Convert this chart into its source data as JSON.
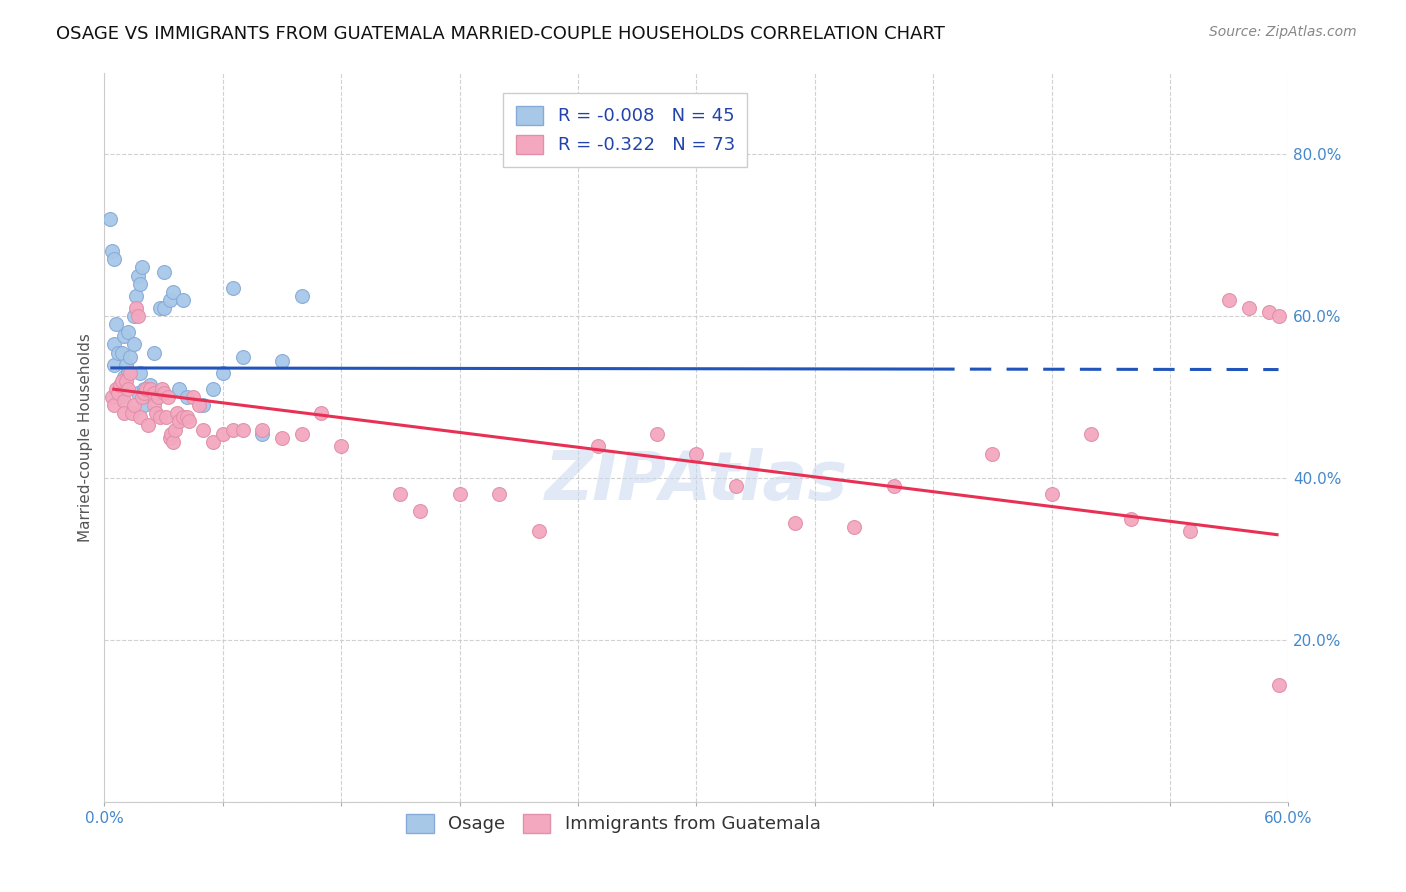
{
  "title": "OSAGE VS IMMIGRANTS FROM GUATEMALA MARRIED-COUPLE HOUSEHOLDS CORRELATION CHART",
  "source": "Source: ZipAtlas.com",
  "ylabel": "Married-couple Households",
  "watermark": "ZIPAtlas",
  "legend_blue_r": "-0.008",
  "legend_blue_n": "45",
  "legend_pink_r": "-0.322",
  "legend_pink_n": "73",
  "xmin": 0.0,
  "xmax": 0.6,
  "ymin": 0.0,
  "ymax": 0.9,
  "yticks": [
    0.0,
    0.2,
    0.4,
    0.6,
    0.8
  ],
  "xticks": [
    0.0,
    0.06,
    0.12,
    0.18,
    0.24,
    0.3,
    0.36,
    0.42,
    0.48,
    0.54,
    0.6
  ],
  "xlabels_show": [
    "0.0%",
    "",
    "",
    "",
    "",
    "",
    "",
    "",
    "",
    "",
    "60.0%"
  ],
  "ylabels": [
    "",
    "20.0%",
    "40.0%",
    "60.0%",
    "80.0%"
  ],
  "blue_color": "#a8c8e8",
  "pink_color": "#f4a8c0",
  "blue_line_color": "#2255bb",
  "pink_line_color": "#e83055",
  "background_color": "#ffffff",
  "grid_color": "#cccccc",
  "legend_label_blue": "Osage",
  "legend_label_pink": "Immigrants from Guatemala",
  "blue_points_x": [
    0.003,
    0.004,
    0.005,
    0.005,
    0.005,
    0.006,
    0.007,
    0.007,
    0.008,
    0.009,
    0.01,
    0.01,
    0.011,
    0.012,
    0.012,
    0.013,
    0.015,
    0.015,
    0.016,
    0.017,
    0.017,
    0.018,
    0.018,
    0.019,
    0.02,
    0.02,
    0.022,
    0.023,
    0.025,
    0.028,
    0.03,
    0.03,
    0.033,
    0.035,
    0.038,
    0.04,
    0.042,
    0.05,
    0.055,
    0.06,
    0.065,
    0.07,
    0.08,
    0.09,
    0.1
  ],
  "blue_points_y": [
    0.72,
    0.68,
    0.565,
    0.54,
    0.67,
    0.59,
    0.555,
    0.51,
    0.5,
    0.555,
    0.525,
    0.575,
    0.54,
    0.53,
    0.58,
    0.55,
    0.565,
    0.6,
    0.625,
    0.65,
    0.505,
    0.64,
    0.53,
    0.66,
    0.49,
    0.51,
    0.51,
    0.515,
    0.555,
    0.61,
    0.61,
    0.655,
    0.62,
    0.63,
    0.51,
    0.62,
    0.5,
    0.49,
    0.51,
    0.53,
    0.635,
    0.55,
    0.455,
    0.545,
    0.625
  ],
  "pink_points_x": [
    0.004,
    0.005,
    0.006,
    0.007,
    0.008,
    0.009,
    0.01,
    0.01,
    0.011,
    0.012,
    0.013,
    0.014,
    0.015,
    0.016,
    0.017,
    0.018,
    0.019,
    0.02,
    0.021,
    0.022,
    0.023,
    0.025,
    0.025,
    0.026,
    0.027,
    0.028,
    0.029,
    0.03,
    0.031,
    0.032,
    0.033,
    0.034,
    0.035,
    0.036,
    0.037,
    0.038,
    0.04,
    0.042,
    0.043,
    0.045,
    0.048,
    0.05,
    0.055,
    0.06,
    0.065,
    0.07,
    0.08,
    0.09,
    0.1,
    0.11,
    0.12,
    0.15,
    0.16,
    0.18,
    0.2,
    0.22,
    0.25,
    0.28,
    0.3,
    0.32,
    0.35,
    0.38,
    0.4,
    0.45,
    0.48,
    0.5,
    0.52,
    0.55,
    0.57,
    0.58,
    0.59,
    0.595,
    0.595
  ],
  "pink_points_y": [
    0.5,
    0.49,
    0.51,
    0.505,
    0.515,
    0.52,
    0.495,
    0.48,
    0.52,
    0.51,
    0.53,
    0.48,
    0.49,
    0.61,
    0.6,
    0.475,
    0.5,
    0.505,
    0.51,
    0.465,
    0.51,
    0.49,
    0.505,
    0.48,
    0.5,
    0.475,
    0.51,
    0.505,
    0.475,
    0.5,
    0.45,
    0.455,
    0.445,
    0.46,
    0.48,
    0.47,
    0.475,
    0.475,
    0.47,
    0.5,
    0.49,
    0.46,
    0.445,
    0.455,
    0.46,
    0.46,
    0.46,
    0.45,
    0.455,
    0.48,
    0.44,
    0.38,
    0.36,
    0.38,
    0.38,
    0.335,
    0.44,
    0.455,
    0.43,
    0.39,
    0.345,
    0.34,
    0.39,
    0.43,
    0.38,
    0.455,
    0.35,
    0.335,
    0.62,
    0.61,
    0.605,
    0.145,
    0.6
  ],
  "blue_trend_x": [
    0.003,
    0.595
  ],
  "blue_trend_y": [
    0.536,
    0.534
  ],
  "blue_trend_solid_end_x": 0.42,
  "pink_trend_x": [
    0.004,
    0.595
  ],
  "pink_trend_y": [
    0.51,
    0.33
  ],
  "title_fontsize": 13,
  "source_fontsize": 10,
  "axis_label_fontsize": 11,
  "tick_fontsize": 11,
  "legend_fontsize": 13,
  "watermark_fontsize": 48,
  "watermark_color": "#c8d8ee",
  "watermark_alpha": 0.55
}
